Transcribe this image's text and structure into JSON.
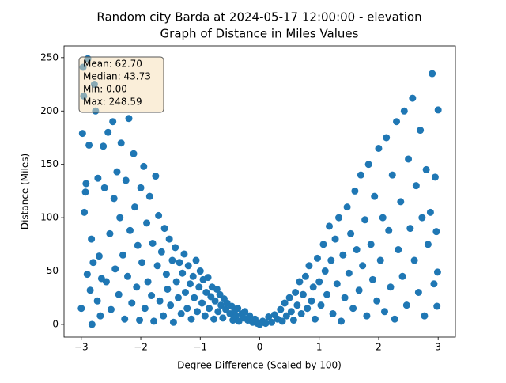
{
  "chart_data": {
    "type": "scatter",
    "title": "Random city Barda at 2024-05-17 12:00:00  - elevation",
    "subtitle": "Graph of Distance in Miles Values",
    "x_label": "Degree Difference (Scaled by 100)",
    "y_label": "Distance (Miles)",
    "stats": [
      "Mean: 62.70",
      "Median: 43.73",
      "Min: 0.00",
      "Max: 248.59"
    ],
    "color": "#1f77b4",
    "xlim": [
      -3.29,
      3.29
    ],
    "ylim": [
      -11.9,
      261
    ],
    "xticks": [
      {
        "value": -3,
        "label": "−3"
      },
      {
        "value": -2,
        "label": "−2"
      },
      {
        "value": -1,
        "label": "−1"
      },
      0,
      1,
      2,
      3
    ],
    "yticks": [
      0,
      50,
      100,
      150,
      200,
      250
    ],
    "series": [
      {
        "name": "Distance",
        "x": [
          -3,
          -2.98,
          -2.97,
          -2.96,
          -2.95,
          -2.93,
          -2.92,
          -2.9,
          -2.89,
          -2.87,
          -2.85,
          -2.83,
          -2.82,
          -2.8,
          -2.78,
          -2.76,
          -2.73,
          -2.72,
          -2.7,
          -2.68,
          -2.66,
          -2.63,
          -2.61,
          -2.58,
          -2.55,
          -2.52,
          -2.5,
          -2.47,
          -2.45,
          -2.43,
          -2.4,
          -2.37,
          -2.35,
          -2.33,
          -2.3,
          -2.27,
          -2.25,
          -2.22,
          -2.2,
          -2.18,
          -2.15,
          -2.12,
          -2.1,
          -2.07,
          -2.05,
          -2.02,
          -2.0,
          -1.98,
          -1.95,
          -1.93,
          -1.9,
          -1.88,
          -1.85,
          -1.82,
          -1.8,
          -1.78,
          -1.75,
          -1.72,
          -1.7,
          -1.68,
          -1.65,
          -1.62,
          -1.6,
          -1.57,
          -1.55,
          -1.52,
          -1.5,
          -1.47,
          -1.45,
          -1.42,
          -1.4,
          -1.37,
          -1.35,
          -1.32,
          -1.3,
          -1.27,
          -1.25,
          -1.22,
          -1.2,
          -1.17,
          -1.15,
          -1.12,
          -1.1,
          -1.07,
          -1.05,
          -1.02,
          -1.0,
          -0.97,
          -0.95,
          -0.92,
          -0.9,
          -0.87,
          -0.85,
          -0.82,
          -0.8,
          -0.77,
          -0.75,
          -0.72,
          -0.7,
          -0.67,
          -0.65,
          -0.62,
          -0.6,
          -0.57,
          -0.55,
          -0.5,
          -0.47,
          -0.45,
          -0.42,
          -0.4,
          -0.37,
          -0.35,
          -0.3,
          -0.27,
          -0.25,
          -0.2,
          -0.17,
          -0.12,
          -0.08,
          -0.04,
          0,
          0.05,
          0.1,
          0.15,
          0.2,
          0.25,
          0.3,
          0.35,
          0.38,
          0.42,
          0.45,
          0.5,
          0.53,
          0.57,
          0.6,
          0.63,
          0.67,
          0.7,
          0.73,
          0.77,
          0.8,
          0.83,
          0.87,
          0.9,
          0.93,
          0.97,
          1.0,
          1.03,
          1.07,
          1.1,
          1.13,
          1.17,
          1.2,
          1.23,
          1.27,
          1.3,
          1.33,
          1.37,
          1.4,
          1.43,
          1.47,
          1.5,
          1.53,
          1.57,
          1.6,
          1.63,
          1.67,
          1.7,
          1.73,
          1.77,
          1.8,
          1.83,
          1.87,
          1.9,
          1.93,
          1.97,
          2.0,
          2.03,
          2.07,
          2.1,
          2.13,
          2.17,
          2.2,
          2.23,
          2.27,
          2.3,
          2.33,
          2.37,
          2.4,
          2.43,
          2.47,
          2.5,
          2.53,
          2.57,
          2.6,
          2.63,
          2.67,
          2.7,
          2.73,
          2.77,
          2.8,
          2.83,
          2.87,
          2.9,
          2.93,
          2.95,
          2.97,
          3.0,
          2.98,
          2.99
        ],
        "values": [
          15,
          179,
          241,
          214,
          105,
          124,
          132,
          47,
          249,
          168,
          32,
          80,
          0,
          58,
          225,
          200,
          22,
          137,
          64,
          8,
          43,
          167,
          128,
          40,
          180,
          85,
          14,
          190,
          118,
          52,
          143,
          28,
          100,
          170,
          65,
          5,
          135,
          45,
          193,
          88,
          20,
          160,
          110,
          35,
          74,
          4,
          128,
          58,
          148,
          15,
          95,
          40,
          120,
          27,
          76,
          3,
          139,
          55,
          102,
          22,
          68,
          8,
          90,
          47,
          33,
          80,
          18,
          60,
          2,
          72,
          40,
          25,
          58,
          10,
          48,
          66,
          30,
          15,
          55,
          38,
          5,
          45,
          25,
          60,
          12,
          35,
          50,
          20,
          42,
          8,
          30,
          44,
          15,
          26,
          35,
          5,
          22,
          33,
          12,
          28,
          18,
          6,
          24,
          14,
          20,
          10,
          17,
          4,
          13,
          8,
          15,
          3,
          10,
          6,
          12,
          4,
          8,
          2,
          5,
          1,
          0,
          3,
          1,
          7,
          2,
          9,
          5,
          14,
          3,
          20,
          8,
          25,
          12,
          4,
          30,
          18,
          40,
          10,
          28,
          45,
          15,
          55,
          22,
          35,
          5,
          62,
          40,
          18,
          75,
          50,
          28,
          92,
          60,
          10,
          80,
          38,
          100,
          3,
          65,
          25,
          110,
          48,
          85,
          15,
          125,
          70,
          32,
          140,
          55,
          98,
          8,
          150,
          75,
          42,
          120,
          22,
          165,
          60,
          100,
          12,
          175,
          88,
          35,
          140,
          5,
          190,
          70,
          115,
          45,
          200,
          18,
          155,
          90,
          212,
          60,
          130,
          30,
          182,
          100,
          8,
          145,
          75,
          105,
          235,
          38,
          138,
          87,
          201,
          17,
          49
        ]
      }
    ]
  }
}
